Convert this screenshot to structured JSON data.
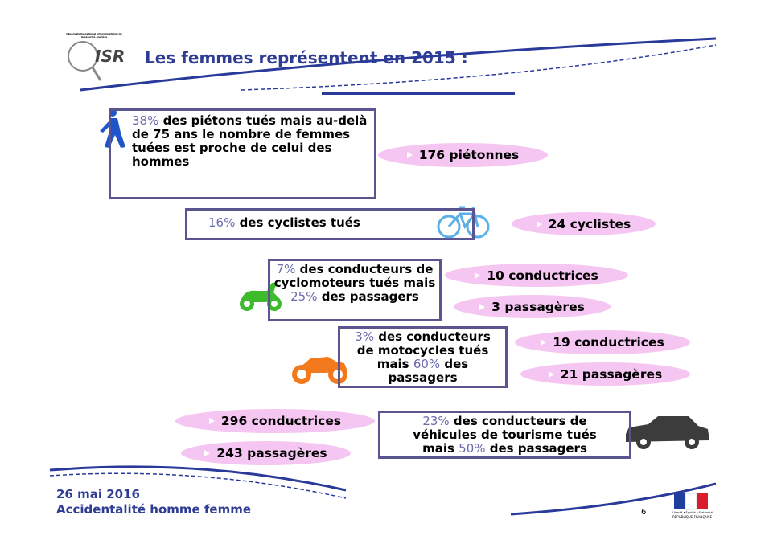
{
  "header": {
    "logo_text": "ISR",
    "logo_caption": "Observatoire national interministériel de la sécurité routière",
    "title": "Les femmes représentent en 2015 :"
  },
  "boxes": [
    {
      "segments": [
        {
          "text": "38%",
          "emphasis": true
        },
        {
          "text": " des piétons tués mais au-delà de 75 ans le nombre de femmes tuées est proche de celui des hommes"
        }
      ]
    },
    {
      "segments": [
        {
          "text": "16%",
          "emphasis": true
        },
        {
          "text": " des cyclistes tués"
        }
      ]
    },
    {
      "segments": [
        {
          "text": "7%",
          "emphasis": true
        },
        {
          "text": " des conducteurs de cyclomoteurs tués mais "
        },
        {
          "text": "25%",
          "emphasis": true
        },
        {
          "text": " des passagers"
        }
      ]
    },
    {
      "segments": [
        {
          "text": "3%",
          "emphasis": true
        },
        {
          "text": " des conducteurs de motocycles tués mais "
        },
        {
          "text": "60%",
          "emphasis": true
        },
        {
          "text": " des passagers"
        }
      ]
    },
    {
      "segments": [
        {
          "text": "23%",
          "emphasis": true
        },
        {
          "text": " des conducteurs de véhicules de tourisme tués mais "
        },
        {
          "text": "50%",
          "emphasis": true
        },
        {
          "text": " des passagers"
        }
      ]
    }
  ],
  "pills": [
    "176 piétonnes",
    "24 cyclistes",
    "10 conductrices",
    "3 passagères",
    "19 conductrices",
    "21 passagères",
    "296 conductrices",
    "243 passagères"
  ],
  "footer": {
    "date": "26 mai 2016",
    "subject": "Accidentalité homme femme",
    "page": "6",
    "motto": "Liberté • Égalité • Fraternité",
    "republic": "République Française"
  }
}
